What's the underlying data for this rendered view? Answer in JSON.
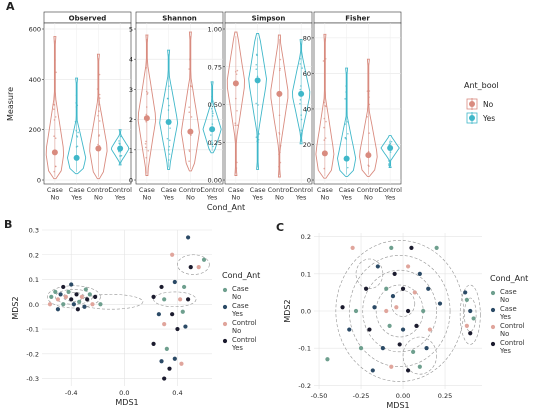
{
  "chart_data": [
    {
      "panel_label": "A",
      "type": "violin",
      "xlabel": "Cond_Ant",
      "ylabel": "Measure",
      "categories": [
        "Case\nNo",
        "Case\nYes",
        "Control\nNo",
        "Control\nYes"
      ],
      "legend": {
        "title": "Ant_bool",
        "entries": [
          "No",
          "Yes"
        ],
        "placement": "right"
      },
      "colors": {
        "No": "#d98b7f",
        "Yes": "#3fb7c9"
      },
      "facets": [
        {
          "title": "Observed",
          "ylim": [
            0,
            600
          ],
          "yticks": [
            0,
            200,
            400,
            600
          ],
          "groups": [
            {
              "ant": "No",
              "min": 5,
              "max": 570,
              "mean": 110
            },
            {
              "ant": "Yes",
              "min": 25,
              "max": 405,
              "mean": 88
            },
            {
              "ant": "No",
              "min": 5,
              "max": 500,
              "mean": 125
            },
            {
              "ant": "Yes",
              "min": 60,
              "max": 200,
              "mean": 125
            }
          ]
        },
        {
          "title": "Shannon",
          "ylim": [
            0,
            5
          ],
          "yticks": [
            0,
            1,
            2,
            3,
            4,
            5
          ],
          "groups": [
            {
              "ant": "No",
              "min": 0.15,
              "max": 4.8,
              "mean": 2.05
            },
            {
              "ant": "Yes",
              "min": 0.35,
              "max": 4.3,
              "mean": 1.92
            },
            {
              "ant": "No",
              "min": 0.3,
              "max": 4.9,
              "mean": 1.6
            },
            {
              "ant": "Yes",
              "min": 0.9,
              "max": 3.25,
              "mean": 1.68
            }
          ]
        },
        {
          "title": "Simpson",
          "ylim": [
            0,
            1
          ],
          "yticks": [
            0.0,
            0.25,
            0.5,
            0.75,
            1.0
          ],
          "groups": [
            {
              "ant": "No",
              "min": 0.03,
              "max": 0.98,
              "mean": 0.64
            },
            {
              "ant": "Yes",
              "min": 0.07,
              "max": 0.97,
              "mean": 0.66
            },
            {
              "ant": "No",
              "min": 0.02,
              "max": 0.96,
              "mean": 0.57
            },
            {
              "ant": "Yes",
              "min": 0.24,
              "max": 0.93,
              "mean": 0.57
            }
          ]
        },
        {
          "title": "Fisher",
          "ylim": [
            0,
            85
          ],
          "yticks": [
            0,
            20,
            40,
            60,
            80
          ],
          "groups": [
            {
              "ant": "No",
              "min": 1,
              "max": 82,
              "mean": 15
            },
            {
              "ant": "Yes",
              "min": 2,
              "max": 63,
              "mean": 12
            },
            {
              "ant": "No",
              "min": 2,
              "max": 68,
              "mean": 14
            },
            {
              "ant": "Yes",
              "min": 7,
              "max": 25,
              "mean": 18
            }
          ]
        }
      ]
    },
    {
      "panel_label": "B",
      "type": "scatter",
      "xlabel": "MDS1",
      "ylabel": "MDS2",
      "xlim": [
        -0.62,
        0.66
      ],
      "ylim": [
        -0.33,
        0.3
      ],
      "xticks": [
        -0.4,
        0.0,
        0.4
      ],
      "yticks": [
        -0.3,
        -0.2,
        -0.1,
        0.0,
        0.1,
        0.2,
        0.3
      ],
      "legend": {
        "title": "Cond_Ant",
        "entries": [
          "Case\nNo",
          "Case\nYes",
          "Control\nNo",
          "Control\nYes"
        ],
        "placement": "right"
      },
      "colors": {
        "Case_No": "#6e9f8e",
        "Case_Yes": "#2b4a66",
        "Control_No": "#e0a59c",
        "Control_Yes": "#1b1b2e"
      },
      "points": [
        {
          "x": -0.55,
          "y": 0.03,
          "g": 1
        },
        {
          "x": -0.52,
          "y": 0.05,
          "g": 1
        },
        {
          "x": -0.5,
          "y": 0.02,
          "g": 3
        },
        {
          "x": -0.48,
          "y": 0.04,
          "g": 2
        },
        {
          "x": -0.46,
          "y": 0.0,
          "g": 1
        },
        {
          "x": -0.44,
          "y": 0.03,
          "g": 3
        },
        {
          "x": -0.42,
          "y": 0.05,
          "g": 1
        },
        {
          "x": -0.4,
          "y": 0.02,
          "g": 4
        },
        {
          "x": -0.38,
          "y": 0.0,
          "g": 2
        },
        {
          "x": -0.36,
          "y": 0.04,
          "g": 4
        },
        {
          "x": -0.34,
          "y": 0.01,
          "g": 1
        },
        {
          "x": -0.32,
          "y": 0.03,
          "g": 3
        },
        {
          "x": -0.3,
          "y": -0.01,
          "g": 2
        },
        {
          "x": -0.28,
          "y": 0.02,
          "g": 4
        },
        {
          "x": -0.26,
          "y": 0.04,
          "g": 1
        },
        {
          "x": -0.24,
          "y": 0.0,
          "g": 3
        },
        {
          "x": -0.46,
          "y": 0.07,
          "g": 4
        },
        {
          "x": -0.4,
          "y": 0.08,
          "g": 2
        },
        {
          "x": -0.35,
          "y": -0.02,
          "g": 4
        },
        {
          "x": -0.5,
          "y": -0.02,
          "g": 2
        },
        {
          "x": -0.22,
          "y": 0.03,
          "g": 4
        },
        {
          "x": -0.56,
          "y": 0.0,
          "g": 3
        },
        {
          "x": -0.29,
          "y": 0.06,
          "g": 1
        },
        {
          "x": -0.18,
          "y": 0.0,
          "g": 1
        },
        {
          "x": 0.28,
          "y": 0.07,
          "g": 4
        },
        {
          "x": 0.38,
          "y": 0.09,
          "g": 2
        },
        {
          "x": 0.45,
          "y": 0.07,
          "g": 1
        },
        {
          "x": 0.5,
          "y": 0.15,
          "g": 4
        },
        {
          "x": 0.56,
          "y": 0.15,
          "g": 3
        },
        {
          "x": 0.6,
          "y": 0.18,
          "g": 1
        },
        {
          "x": 0.48,
          "y": 0.27,
          "g": 2
        },
        {
          "x": 0.36,
          "y": 0.2,
          "g": 3
        },
        {
          "x": 0.22,
          "y": 0.03,
          "g": 4
        },
        {
          "x": 0.3,
          "y": 0.02,
          "g": 1
        },
        {
          "x": 0.42,
          "y": 0.02,
          "g": 3
        },
        {
          "x": 0.48,
          "y": 0.02,
          "g": 4
        },
        {
          "x": 0.26,
          "y": -0.04,
          "g": 2
        },
        {
          "x": 0.36,
          "y": -0.04,
          "g": 4
        },
        {
          "x": 0.44,
          "y": -0.03,
          "g": 1
        },
        {
          "x": 0.3,
          "y": -0.08,
          "g": 3
        },
        {
          "x": 0.4,
          "y": -0.1,
          "g": 4
        },
        {
          "x": 0.46,
          "y": -0.09,
          "g": 2
        },
        {
          "x": 0.22,
          "y": -0.16,
          "g": 4
        },
        {
          "x": 0.32,
          "y": -0.18,
          "g": 1
        },
        {
          "x": 0.38,
          "y": -0.22,
          "g": 2
        },
        {
          "x": 0.43,
          "y": -0.24,
          "g": 3
        },
        {
          "x": 0.34,
          "y": -0.26,
          "g": 4
        },
        {
          "x": 0.3,
          "y": -0.3,
          "g": 4
        },
        {
          "x": 0.28,
          "y": -0.23,
          "g": 2
        }
      ]
    },
    {
      "panel_label": "C",
      "type": "scatter",
      "xlabel": "MDS1",
      "ylabel": "MDS2",
      "xlim": [
        -0.53,
        0.47
      ],
      "ylim": [
        -0.21,
        0.21
      ],
      "xticks": [
        -0.5,
        -0.25,
        0.0,
        0.25
      ],
      "yticks": [
        -0.2,
        -0.1,
        0.0,
        0.1,
        0.2
      ],
      "legend": {
        "title": "Cond_Ant",
        "entries": [
          "Case\nNo",
          "Case\nYes",
          "Control\nNo",
          "Control\nYes"
        ],
        "placement": "right"
      },
      "colors": {
        "Case_No": "#6e9f8e",
        "Case_Yes": "#2b4a66",
        "Control_No": "#e0a59c",
        "Control_Yes": "#1b1b2e"
      },
      "points": [
        {
          "x": -0.3,
          "y": 0.17,
          "g": 3
        },
        {
          "x": -0.07,
          "y": 0.17,
          "g": 1
        },
        {
          "x": 0.05,
          "y": 0.17,
          "g": 4
        },
        {
          "x": 0.2,
          "y": 0.17,
          "g": 1
        },
        {
          "x": -0.15,
          "y": 0.12,
          "g": 2
        },
        {
          "x": -0.05,
          "y": 0.1,
          "g": 4
        },
        {
          "x": 0.03,
          "y": 0.12,
          "g": 3
        },
        {
          "x": 0.1,
          "y": 0.1,
          "g": 2
        },
        {
          "x": -0.22,
          "y": 0.06,
          "g": 4
        },
        {
          "x": -0.1,
          "y": 0.06,
          "g": 1
        },
        {
          "x": 0.0,
          "y": 0.06,
          "g": 4
        },
        {
          "x": 0.07,
          "y": 0.05,
          "g": 3
        },
        {
          "x": 0.15,
          "y": 0.06,
          "g": 2
        },
        {
          "x": -0.36,
          "y": 0.01,
          "g": 4
        },
        {
          "x": -0.28,
          "y": 0.0,
          "g": 1
        },
        {
          "x": -0.17,
          "y": 0.01,
          "g": 2
        },
        {
          "x": -0.04,
          "y": 0.01,
          "g": 3
        },
        {
          "x": 0.03,
          "y": 0.0,
          "g": 4
        },
        {
          "x": 0.12,
          "y": 0.0,
          "g": 1
        },
        {
          "x": 0.22,
          "y": 0.02,
          "g": 2
        },
        {
          "x": -0.32,
          "y": -0.05,
          "g": 2
        },
        {
          "x": -0.2,
          "y": -0.05,
          "g": 4
        },
        {
          "x": -0.08,
          "y": -0.04,
          "g": 1
        },
        {
          "x": 0.0,
          "y": -0.05,
          "g": 2
        },
        {
          "x": 0.08,
          "y": -0.04,
          "g": 4
        },
        {
          "x": 0.16,
          "y": -0.05,
          "g": 3
        },
        {
          "x": -0.25,
          "y": -0.1,
          "g": 1
        },
        {
          "x": -0.12,
          "y": -0.1,
          "g": 2
        },
        {
          "x": -0.02,
          "y": -0.09,
          "g": 4
        },
        {
          "x": 0.06,
          "y": -0.11,
          "g": 1
        },
        {
          "x": 0.14,
          "y": -0.1,
          "g": 2
        },
        {
          "x": -0.18,
          "y": -0.16,
          "g": 2
        },
        {
          "x": -0.07,
          "y": -0.15,
          "g": 3
        },
        {
          "x": 0.03,
          "y": -0.16,
          "g": 4
        },
        {
          "x": 0.1,
          "y": -0.15,
          "g": 1
        },
        {
          "x": 0.38,
          "y": 0.03,
          "g": 1
        },
        {
          "x": 0.4,
          "y": 0.0,
          "g": 2
        },
        {
          "x": 0.38,
          "y": -0.04,
          "g": 3
        },
        {
          "x": 0.42,
          "y": -0.02,
          "g": 1
        },
        {
          "x": 0.4,
          "y": -0.06,
          "g": 4
        },
        {
          "x": -0.45,
          "y": -0.13,
          "g": 1
        },
        {
          "x": 0.37,
          "y": 0.05,
          "g": 2
        },
        {
          "x": -0.1,
          "y": 0.0,
          "g": 3
        },
        {
          "x": -0.06,
          "y": 0.04,
          "g": 2
        }
      ]
    }
  ]
}
